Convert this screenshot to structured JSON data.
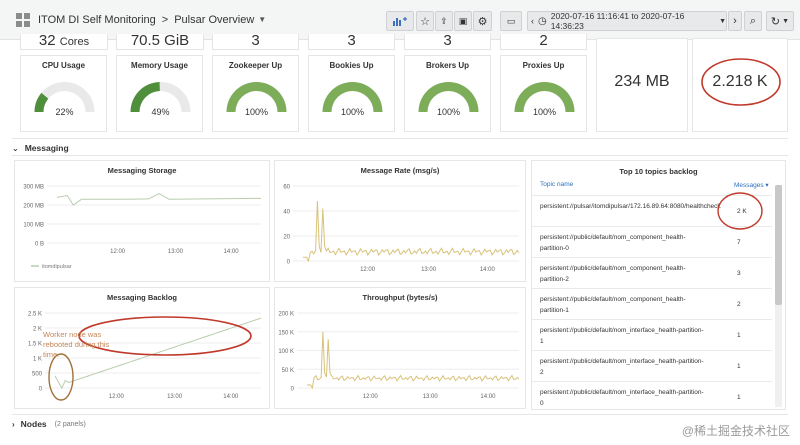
{
  "header": {
    "app_title": "ITOM DI Self Monitoring",
    "page_title": "Pulsar Overview",
    "time_range": "2020-07-16 11:16:41 to 2020-07-16 14:36:23"
  },
  "stats_top": [
    {
      "value": "32",
      "unit": "Cores"
    },
    {
      "value": "70.5 GiB",
      "unit": ""
    },
    {
      "value": "3",
      "unit": ""
    },
    {
      "value": "3",
      "unit": ""
    },
    {
      "value": "3",
      "unit": ""
    },
    {
      "value": "2",
      "unit": ""
    }
  ],
  "gauges": [
    {
      "title": "CPU Usage",
      "value_label": "22%",
      "fraction": 0.22,
      "fill": "#4f8f3c"
    },
    {
      "title": "Memory Usage",
      "value_label": "49%",
      "fraction": 0.49,
      "fill": "#4f8f3c"
    },
    {
      "title": "Zookeeper Up",
      "value_label": "100%",
      "fraction": 1.0,
      "fill": "#7ead5a"
    },
    {
      "title": "Bookies Up",
      "value_label": "100%",
      "fraction": 1.0,
      "fill": "#7ead5a"
    },
    {
      "title": "Brokers Up",
      "value_label": "100%",
      "fraction": 1.0,
      "fill": "#7ead5a"
    },
    {
      "title": "Proxies Up",
      "value_label": "100%",
      "fraction": 1.0,
      "fill": "#7ead5a"
    }
  ],
  "big_stats": [
    {
      "value": "234 MB"
    },
    {
      "value": "2.218 K"
    }
  ],
  "sections": {
    "messaging": "Messaging",
    "nodes": "Nodes",
    "nodes_count": "(2 panels)"
  },
  "chart_data": [
    {
      "type": "line",
      "title": "Messaging Storage",
      "x_ticks": [
        "12:00",
        "13:00",
        "14:00"
      ],
      "y_ticks": [
        "300 MB",
        "200 MB",
        "100 MB",
        "0 B"
      ],
      "ylim": [
        0,
        300
      ],
      "legend": [
        "itomdipulsar"
      ],
      "series": [
        {
          "name": "itomdipulsar",
          "color": "#b9ccb0",
          "x": [
            0,
            0.05,
            0.08,
            0.12,
            0.3,
            0.45,
            0.5,
            0.55,
            1.0
          ],
          "y": [
            240,
            250,
            200,
            230,
            230,
            232,
            260,
            230,
            235
          ]
        }
      ]
    },
    {
      "type": "line",
      "title": "Message Rate (msg/s)",
      "x_ticks": [
        "12:00",
        "13:00",
        "14:00"
      ],
      "y_ticks": [
        "60",
        "40",
        "20",
        "0"
      ],
      "ylim": [
        0,
        60
      ]
    },
    {
      "type": "line",
      "title": "Messaging Backlog",
      "x_ticks": [
        "12:00",
        "13:00",
        "14:00"
      ],
      "y_ticks": [
        "2.5 K",
        "2 K",
        "1.5 K",
        "1 K",
        "500",
        "0"
      ],
      "ylim": [
        0,
        2500
      ],
      "annotation": "Worker node was rebooted during this time."
    },
    {
      "type": "line",
      "title": "Throughput (bytes/s)",
      "x_ticks": [
        "12:00",
        "13:00",
        "14:00"
      ],
      "y_ticks": [
        "200 K",
        "150 K",
        "100 K",
        "50 K",
        "0"
      ],
      "ylim": [
        0,
        200
      ]
    }
  ],
  "topics_table": {
    "title": "Top 10 topics backlog",
    "col_topic": "Topic name",
    "col_messages": "Messages ▾",
    "rows": [
      {
        "topic": "persistent://pulsar/itomdipulsar/172.16.89.64:8080/healthcheck",
        "messages": "2 K"
      },
      {
        "topic": "persistent://public/default/nom_component_health-partition-0",
        "messages": "7"
      },
      {
        "topic": "persistent://public/default/nom_component_health-partition-2",
        "messages": "3"
      },
      {
        "topic": "persistent://public/default/nom_component_health-partition-1",
        "messages": "2"
      },
      {
        "topic": "persistent://public/default/nom_interface_health-partition-1",
        "messages": "1"
      },
      {
        "topic": "persistent://public/default/nom_interface_health-partition-2",
        "messages": "1"
      },
      {
        "topic": "persistent://public/default/nom_interface_health-partition-0",
        "messages": "1"
      }
    ]
  },
  "watermark": "@稀土掘金技术社区"
}
